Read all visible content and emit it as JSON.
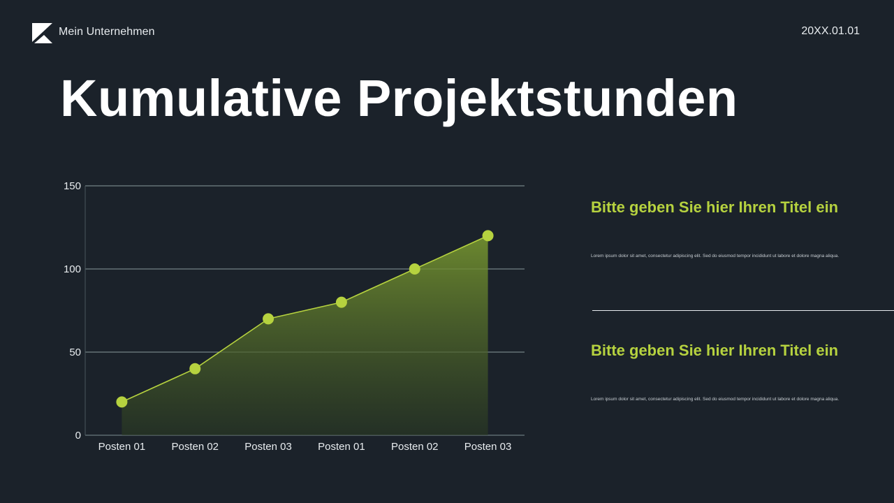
{
  "header": {
    "company_name": "Mein Unternehmen",
    "date": "20XX.01.01",
    "logo_icon": "k-logo-icon"
  },
  "page_title": "Kumulative Projektstunden",
  "sections": [
    {
      "title": "Bitte geben Sie hier Ihren Titel ein",
      "body": "Lorem ipsum dolor sit amet, consectetur adipiscing elit. Sed do eiusmod tempor incididunt ut labore et dolore magna aliqua."
    },
    {
      "title": "Bitte geben Sie hier Ihren Titel ein",
      "body": "Lorem ipsum dolor sit amet, consectetur adipiscing elit. Sed do eiusmod tempor incididunt ut labore et dolore magna aliqua."
    }
  ],
  "colors": {
    "background": "#1b222a",
    "accent": "#b6d23f",
    "gridline": "#8a9a9c",
    "text": "#ffffff"
  },
  "chart_data": {
    "type": "area",
    "title": "Kumulative Projektstunden",
    "categories": [
      "Posten 01",
      "Posten 02",
      "Posten 03",
      "Posten 01",
      "Posten 02",
      "Posten 03"
    ],
    "series": [
      {
        "name": "Projektstunden",
        "values": [
          20,
          40,
          70,
          80,
          100,
          120
        ]
      }
    ],
    "xlabel": "",
    "ylabel": "",
    "ylim": [
      0,
      150
    ],
    "yticks": [
      0,
      50,
      100,
      150
    ],
    "grid": true,
    "legend": "none",
    "markers": true
  }
}
